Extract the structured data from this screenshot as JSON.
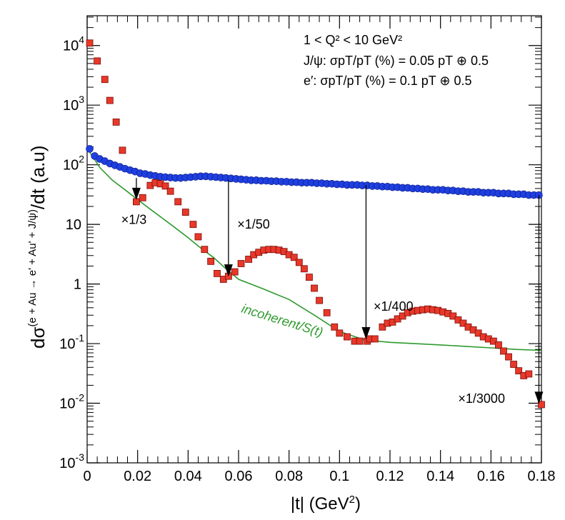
{
  "chart_data": {
    "type": "scatter",
    "xlabel_text": "|t| (GeV",
    "xlabel_sup": "2",
    "xlabel_close": ")",
    "ylabel_main": "dσ",
    "ylabel_sup": "(e + Au → e' + Au' + J/ψ)",
    "ylabel_tail": "/dt (a.u)",
    "xlim": [
      0,
      0.18
    ],
    "ylim_log10": [
      -3,
      4.5
    ],
    "x_ticks": [
      {
        "v": 0,
        "label": "0"
      },
      {
        "v": 0.02,
        "label": "0.02"
      },
      {
        "v": 0.04,
        "label": "0.04"
      },
      {
        "v": 0.06,
        "label": "0.06"
      },
      {
        "v": 0.08,
        "label": "0.08"
      },
      {
        "v": 0.1,
        "label": "0.1"
      },
      {
        "v": 0.12,
        "label": "0.12"
      },
      {
        "v": 0.14,
        "label": "0.14"
      },
      {
        "v": 0.16,
        "label": "0.16"
      },
      {
        "v": 0.18,
        "label": "0.18"
      }
    ],
    "y_ticks": [
      {
        "e": -3,
        "base": "10",
        "exp": "-3"
      },
      {
        "e": -2,
        "base": "10",
        "exp": "-2"
      },
      {
        "e": -1,
        "base": "10",
        "exp": "-1"
      },
      {
        "e": 0,
        "base": "1",
        "exp": ""
      },
      {
        "e": 1,
        "base": "10",
        "exp": ""
      },
      {
        "e": 2,
        "base": "10",
        "exp": "2"
      },
      {
        "e": 3,
        "base": "10",
        "exp": "3"
      },
      {
        "e": 4,
        "base": "10",
        "exp": "4"
      }
    ],
    "info_lines": [
      "1 < Q² < 10 GeV²",
      "J/ψ:  σpT/pT (%) = 0.05 pT ⊕ 0.5",
      "e′:    σpT/pT (%) = 0.1 pT ⊕ 0.5"
    ],
    "series": [
      {
        "name": "coherent (red squares)",
        "color": "#e8382a",
        "x": [
          0.001,
          0.004,
          0.007,
          0.009,
          0.0115,
          0.014,
          0.0195,
          0.022,
          0.025,
          0.027,
          0.029,
          0.031,
          0.033,
          0.036,
          0.039,
          0.042,
          0.044,
          0.0465,
          0.049,
          0.0515,
          0.054,
          0.056,
          0.0585,
          0.061,
          0.064,
          0.066,
          0.068,
          0.07,
          0.072,
          0.074,
          0.076,
          0.078,
          0.08,
          0.082,
          0.084,
          0.086,
          0.088,
          0.09,
          0.092,
          0.095,
          0.098,
          0.1,
          0.103,
          0.106,
          0.108,
          0.111,
          0.112,
          0.114,
          0.117,
          0.119,
          0.121,
          0.123,
          0.125,
          0.127,
          0.129,
          0.131,
          0.133,
          0.135,
          0.137,
          0.139,
          0.141,
          0.143,
          0.145,
          0.147,
          0.149,
          0.151,
          0.153,
          0.155,
          0.157,
          0.159,
          0.161,
          0.163,
          0.165,
          0.167,
          0.169,
          0.171,
          0.173,
          0.175,
          0.18
        ],
        "y": [
          11000,
          5500,
          2700,
          1200,
          520,
          175,
          24,
          28,
          45,
          50,
          48,
          44,
          36,
          24,
          16,
          10,
          6.2,
          3.8,
          2.4,
          1.5,
          1.2,
          1.35,
          1.6,
          2.2,
          2.6,
          3.1,
          3.4,
          3.7,
          3.8,
          3.8,
          3.7,
          3.5,
          3.1,
          2.8,
          2.3,
          1.8,
          1.3,
          0.85,
          0.53,
          0.33,
          0.19,
          0.15,
          0.13,
          0.11,
          0.11,
          0.11,
          0.12,
          0.12,
          0.19,
          0.22,
          0.23,
          0.26,
          0.29,
          0.33,
          0.35,
          0.36,
          0.37,
          0.38,
          0.37,
          0.36,
          0.34,
          0.32,
          0.29,
          0.25,
          0.22,
          0.19,
          0.17,
          0.15,
          0.13,
          0.12,
          0.11,
          0.095,
          0.075,
          0.06,
          0.045,
          0.035,
          0.029,
          0.031,
          0.0095
        ]
      },
      {
        "name": "incoherent (blue circles)",
        "color": "#1f3fe0",
        "x": [
          0.001,
          0.003,
          0.005,
          0.007,
          0.009,
          0.011,
          0.013,
          0.015,
          0.017,
          0.019,
          0.021,
          0.023,
          0.025,
          0.027,
          0.029,
          0.031,
          0.033,
          0.035,
          0.037,
          0.039,
          0.041,
          0.043,
          0.045,
          0.047,
          0.049,
          0.051,
          0.053,
          0.055,
          0.057,
          0.059,
          0.061,
          0.063,
          0.065,
          0.067,
          0.069,
          0.071,
          0.073,
          0.075,
          0.077,
          0.079,
          0.081,
          0.083,
          0.085,
          0.087,
          0.089,
          0.091,
          0.093,
          0.095,
          0.097,
          0.099,
          0.101,
          0.103,
          0.105,
          0.107,
          0.109,
          0.111,
          0.113,
          0.115,
          0.117,
          0.119,
          0.121,
          0.123,
          0.125,
          0.127,
          0.129,
          0.131,
          0.133,
          0.135,
          0.137,
          0.139,
          0.141,
          0.143,
          0.145,
          0.147,
          0.149,
          0.151,
          0.153,
          0.155,
          0.157,
          0.159,
          0.161,
          0.163,
          0.165,
          0.167,
          0.169,
          0.171,
          0.173,
          0.175,
          0.177,
          0.179
        ],
        "y": [
          185,
          140,
          125,
          115,
          105,
          98,
          92,
          86,
          81,
          77,
          72,
          70,
          67,
          65,
          63,
          62,
          61,
          60,
          60,
          61,
          62,
          63,
          64,
          64,
          63,
          62,
          61,
          60,
          59,
          58,
          57,
          56,
          55,
          55,
          54,
          54,
          53,
          53,
          52,
          52,
          51,
          51,
          50,
          50,
          50,
          49,
          49,
          48,
          48,
          47,
          47,
          46,
          46,
          46,
          45,
          45,
          44,
          44,
          43,
          43,
          42,
          42,
          41,
          41,
          40,
          40,
          39,
          39,
          38,
          38,
          38,
          37,
          37,
          36,
          36,
          35,
          35,
          35,
          34,
          34,
          34,
          33,
          33,
          33,
          32,
          32,
          32,
          31,
          31,
          31
        ]
      },
      {
        "name": "incoherent/S(t)",
        "color": "#2e9a2e",
        "x": [
          0.0,
          0.005,
          0.01,
          0.015,
          0.02,
          0.025,
          0.03,
          0.035,
          0.04,
          0.045,
          0.05,
          0.055,
          0.06,
          0.07,
          0.08,
          0.09,
          0.1,
          0.11,
          0.12,
          0.13,
          0.14,
          0.15,
          0.16,
          0.17,
          0.18
        ],
        "y": [
          190,
          90,
          55,
          38,
          26,
          18,
          12.5,
          8.7,
          6,
          4,
          2.8,
          1.8,
          1.2,
          0.82,
          0.55,
          0.3,
          0.16,
          0.115,
          0.105,
          0.1,
          0.095,
          0.09,
          0.085,
          0.08,
          0.077
        ]
      }
    ],
    "annotations": [
      {
        "text": "×1/3",
        "x": 0.0195,
        "y_from": 60,
        "y_to": 25,
        "lx": 0.0135,
        "ly": 12
      },
      {
        "text": "×1/50",
        "x": 0.056,
        "y_from": 56,
        "y_to": 1.3,
        "lx": 0.0595,
        "ly": 10
      },
      {
        "text": "×1/400",
        "x": 0.1105,
        "y_from": 46,
        "y_to": 0.115,
        "lx": 0.1135,
        "ly": 0.42
      },
      {
        "text": "×1/3000",
        "x": 0.179,
        "y_from": 31,
        "y_to": 0.0095,
        "lx": 0.147,
        "ly": 0.012
      }
    ],
    "curve_label": "incoherent/S(t)"
  }
}
